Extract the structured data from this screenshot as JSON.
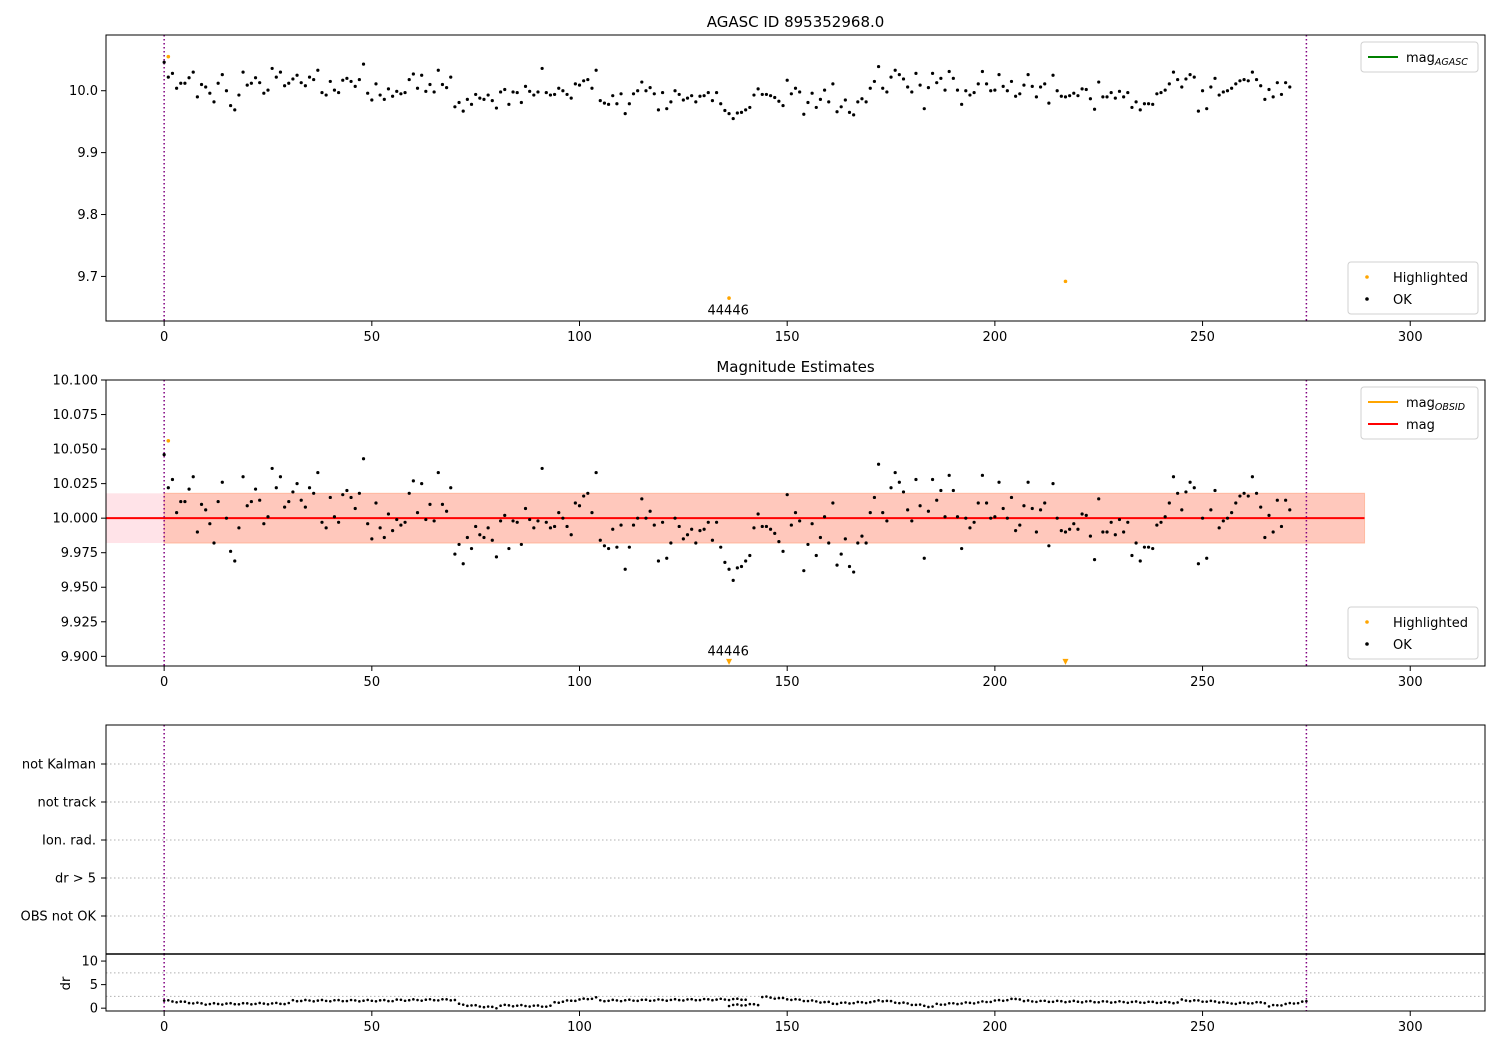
{
  "figure": {
    "colors": {
      "ok": "#000000",
      "highlighted": "#ffa500",
      "mag_agasc_line": "#008000",
      "mag_obsid_line": "#ffa500",
      "mag_line": "#ff0000",
      "band_inner": "#ffa07a",
      "band_outer": "#ffc0cb",
      "vline": "#800080",
      "hgrid": "#b0b0b0"
    },
    "vlines_x": [
      0,
      275
    ]
  },
  "chart_data": [
    {
      "id": "agasc",
      "type": "scatter",
      "title": "AGASC ID 895352968.0",
      "xlim": [
        -14,
        318
      ],
      "ylim": [
        9.628,
        10.09
      ],
      "xticks": [
        0,
        50,
        100,
        150,
        200,
        250,
        300
      ],
      "yticks": [
        9.7,
        9.8,
        9.9,
        10.0
      ],
      "ytick_labels": [
        "9.7",
        "9.8",
        "9.9",
        "10.0"
      ],
      "legend_lines": [
        {
          "base": "mag",
          "sub": "AGASC",
          "color": "#008000"
        }
      ],
      "legend_points": [
        {
          "name": "Highlighted",
          "color": "#ffa500"
        },
        {
          "name": "OK",
          "color": "#000000"
        }
      ],
      "annotation": {
        "text": "44446",
        "x": 137,
        "y": 9.655
      },
      "highlighted": [
        [
          1,
          10.055
        ],
        [
          136,
          9.665
        ],
        [
          217,
          9.692
        ]
      ],
      "ok_y": [
        10.046,
        10.022,
        10.028,
        10.004,
        10.012,
        10.012,
        10.021,
        10.03,
        9.99,
        10.01,
        10.006,
        9.996,
        9.982,
        10.012,
        10.026,
        10.0,
        9.976,
        9.969,
        9.993,
        10.03,
        10.009,
        10.012,
        10.021,
        10.013,
        9.996,
        10.001,
        10.036,
        10.022,
        10.03,
        10.008,
        10.012,
        10.019,
        10.025,
        10.013,
        10.008,
        10.022,
        10.018,
        10.033,
        9.997,
        9.993,
        10.015,
        10.001,
        9.997,
        10.017,
        10.02,
        10.015,
        10.007,
        10.018,
        10.043,
        9.996,
        9.985,
        10.011,
        9.993,
        9.986,
        10.003,
        9.991,
        9.999,
        9.995,
        9.997,
        10.018,
        10.027,
        10.004,
        10.025,
        9.999,
        10.01,
        9.998,
        10.033,
        10.01,
        10.005,
        10.022,
        9.974,
        9.981,
        9.967,
        9.986,
        9.978,
        9.994,
        9.988,
        9.986,
        9.993,
        9.984,
        9.972,
        9.998,
        10.002,
        9.978,
        9.998,
        9.997,
        9.981,
        10.007,
        9.999,
        9.993,
        9.998,
        10.036,
        9.997,
        9.993,
        9.994,
        10.004,
        10.0,
        9.994,
        9.988,
        10.011,
        10.009,
        10.016,
        10.018,
        10.004,
        10.033,
        9.984,
        9.98,
        9.978,
        9.992,
        9.979,
        9.995,
        9.963,
        9.979,
        9.995,
        10.0,
        10.014,
        10.0,
        10.005,
        9.995,
        9.969,
        9.997,
        9.971,
        9.982,
        10.0,
        9.994,
        9.985,
        9.988,
        9.992,
        9.982,
        9.991,
        9.992,
        9.997,
        9.984,
        9.997,
        9.979,
        9.968,
        9.963,
        9.955,
        9.964,
        9.965,
        9.969,
        9.973,
        9.993,
        10.003,
        9.994,
        9.994,
        9.992,
        9.989,
        9.983,
        9.976,
        10.017,
        9.995,
        10.004,
        9.998,
        9.962,
        9.981,
        9.996,
        9.973,
        9.986,
        10.001,
        9.982,
        10.011,
        9.966,
        9.974,
        9.985,
        9.965,
        9.961,
        9.982,
        9.987,
        9.982,
        10.004,
        10.015,
        10.039,
        10.004,
        9.998,
        10.022,
        10.033,
        10.026,
        10.019,
        10.006,
        9.998,
        10.028,
        10.009,
        9.971,
        10.005,
        10.028,
        10.013,
        10.02,
        10.001,
        10.031,
        10.02,
        10.001,
        9.978,
        10.0,
        9.993,
        9.997,
        10.011,
        10.031,
        10.011,
        10.0,
        10.001,
        10.026,
        10.007,
        10.0,
        10.015,
        9.991,
        9.995,
        10.009,
        10.026,
        10.007,
        9.99,
        10.006,
        10.011,
        9.98,
        10.025,
        10.0,
        9.991,
        9.99,
        9.992,
        9.996,
        9.992,
        10.003,
        10.002,
        9.987,
        9.97,
        10.014,
        9.99,
        9.99,
        9.997,
        9.988,
        9.999,
        9.99,
        9.997,
        9.973,
        9.982,
        9.969,
        9.979,
        9.979,
        9.978,
        9.995,
        9.997,
        10.001,
        10.011,
        10.03,
        10.018,
        10.006,
        10.019,
        10.026,
        10.022,
        9.967,
        10.0,
        9.971,
        10.006,
        10.02,
        9.993,
        9.998,
        10.0,
        10.004,
        10.011,
        10.016,
        10.018,
        10.016,
        10.03,
        10.018,
        10.008,
        9.986,
        10.002,
        9.99,
        10.013,
        9.994,
        10.013,
        10.006
      ]
    },
    {
      "id": "estimates",
      "type": "scatter",
      "title": "Magnitude Estimates",
      "xlim": [
        -14,
        318
      ],
      "ylim": [
        9.893,
        10.1
      ],
      "xticks": [
        0,
        50,
        100,
        150,
        200,
        250,
        300
      ],
      "yticks": [
        9.9,
        9.925,
        9.95,
        9.975,
        10.0,
        10.025,
        10.05,
        10.075,
        10.1
      ],
      "ytick_labels": [
        "9.900",
        "9.925",
        "9.950",
        "9.975",
        "10.000",
        "10.025",
        "10.050",
        "10.075",
        "10.100"
      ],
      "legend_lines": [
        {
          "base": "mag",
          "sub": "OBSID",
          "color": "#ffa500"
        },
        {
          "base": "mag",
          "sub": "",
          "color": "#ff0000"
        }
      ],
      "legend_points": [
        {
          "name": "Highlighted",
          "color": "#ffa500"
        },
        {
          "name": "OK",
          "color": "#000000"
        }
      ],
      "annotation": {
        "text": "44446",
        "x": 137,
        "y": 9.9015
      },
      "mag": 10.0,
      "band_inner": {
        "x": [
          0,
          289
        ],
        "y": [
          9.982,
          10.018
        ]
      },
      "band_outer": {
        "x": [
          -14,
          289
        ],
        "y": [
          9.982,
          10.018
        ]
      },
      "highlighted": [
        [
          1,
          10.056
        ]
      ],
      "highlighted_markers": [
        [
          136,
          9.896
        ],
        [
          217,
          9.896
        ]
      ]
    },
    {
      "id": "flags",
      "type": "scatter",
      "title": "",
      "xlim": [
        -14,
        318
      ],
      "categories": [
        "not Kalman",
        "not track",
        "Ion. rad.",
        "dr > 5",
        "OBS not OK"
      ],
      "points": []
    },
    {
      "id": "dr",
      "type": "scatter",
      "title": "",
      "ylabel": "dr",
      "xlim": [
        -14,
        318
      ],
      "ylim": [
        -0.6,
        11.5
      ],
      "xticks": [
        0,
        50,
        100,
        150,
        200,
        250,
        300
      ],
      "yticks": [
        0,
        5,
        10
      ],
      "ytick_labels": [
        "0",
        "5",
        "10"
      ],
      "segments": [
        {
          "x0": 0,
          "x1": 10,
          "y0": 1.6,
          "y1": 0.9
        },
        {
          "x0": 11,
          "x1": 30,
          "y0": 0.9,
          "y1": 1.0
        },
        {
          "x0": 31,
          "x1": 55,
          "y0": 1.6,
          "y1": 1.6
        },
        {
          "x0": 56,
          "x1": 70,
          "y0": 1.7,
          "y1": 1.8
        },
        {
          "x0": 71,
          "x1": 80,
          "y0": 0.8,
          "y1": 0.1
        },
        {
          "x0": 81,
          "x1": 93,
          "y0": 0.6,
          "y1": 0.4
        },
        {
          "x0": 94,
          "x1": 104,
          "y0": 1.2,
          "y1": 2.2
        },
        {
          "x0": 105,
          "x1": 140,
          "y0": 1.6,
          "y1": 1.9
        },
        {
          "x0": 136,
          "x1": 143,
          "y0": 0.6,
          "y1": 0.8
        },
        {
          "x0": 144,
          "x1": 160,
          "y0": 2.4,
          "y1": 1.2
        },
        {
          "x0": 161,
          "x1": 171,
          "y0": 1.0,
          "y1": 1.3
        },
        {
          "x0": 172,
          "x1": 185,
          "y0": 1.7,
          "y1": 0.3
        },
        {
          "x0": 186,
          "x1": 196,
          "y0": 0.8,
          "y1": 1.2
        },
        {
          "x0": 197,
          "x1": 206,
          "y0": 1.3,
          "y1": 2.0
        },
        {
          "x0": 207,
          "x1": 244,
          "y0": 1.5,
          "y1": 1.2
        },
        {
          "x0": 245,
          "x1": 255,
          "y0": 1.7,
          "y1": 1.3
        },
        {
          "x0": 256,
          "x1": 265,
          "y0": 1.0,
          "y1": 1.2
        },
        {
          "x0": 266,
          "x1": 275,
          "y0": 0.4,
          "y1": 1.4
        }
      ]
    }
  ]
}
